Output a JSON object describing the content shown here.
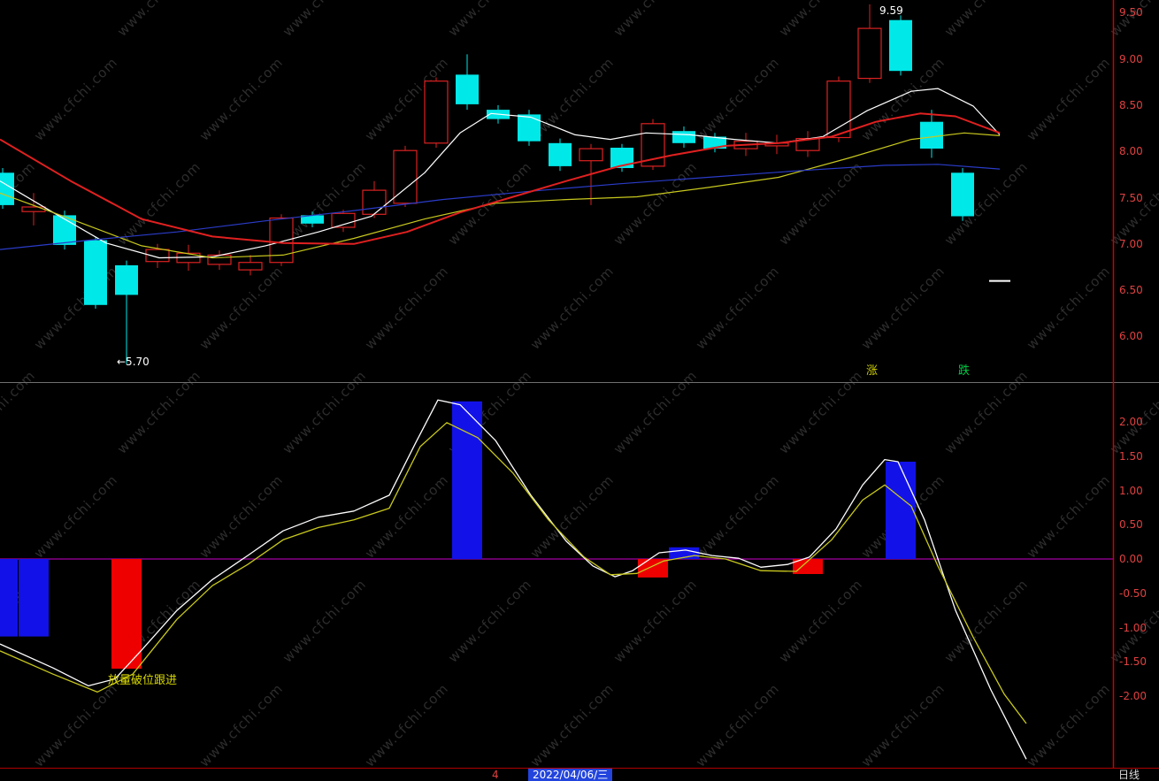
{
  "app": {
    "watermark_text": "www.cfchi.com"
  },
  "colors": {
    "background": "#000000",
    "axis_text": "#e04040",
    "axis_line": "#cc0000",
    "divider": "#707070",
    "candle_up": "#dd2222",
    "candle_down": "#00e8e8",
    "zero_line": "#cc00cc",
    "date_highlight": "#2244dd"
  },
  "chart_data": [
    {
      "type": "candlestick",
      "panel": "main",
      "ylabel": "price",
      "ylim": [
        5.5,
        9.7
      ],
      "y_ticks": [
        "9.50",
        "9.00",
        "8.50",
        "8.00",
        "7.50",
        "7.00",
        "6.50",
        "6.00"
      ],
      "up_color": "#dd2222",
      "down_color": "#00e8e8",
      "candles_format": "ohlc",
      "candles": [
        [
          7.77,
          7.82,
          7.38,
          7.42
        ],
        [
          7.35,
          7.55,
          7.2,
          7.4
        ],
        [
          7.31,
          7.36,
          6.94,
          6.99
        ],
        [
          7.04,
          7.08,
          6.3,
          6.34
        ],
        [
          6.77,
          6.82,
          5.7,
          6.45
        ],
        [
          6.81,
          7.0,
          6.74,
          6.94
        ],
        [
          6.8,
          6.99,
          6.71,
          6.9
        ],
        [
          6.78,
          6.93,
          6.72,
          6.88
        ],
        [
          6.72,
          6.88,
          6.66,
          6.8
        ],
        [
          6.8,
          7.32,
          6.76,
          7.28
        ],
        [
          7.31,
          7.35,
          7.18,
          7.22
        ],
        [
          7.18,
          7.37,
          7.13,
          7.33
        ],
        [
          7.32,
          7.68,
          7.28,
          7.58
        ],
        [
          7.44,
          8.06,
          7.4,
          8.01
        ],
        [
          8.09,
          8.8,
          8.04,
          8.76
        ],
        [
          8.83,
          9.05,
          8.45,
          8.51
        ],
        [
          8.45,
          8.5,
          8.3,
          8.35
        ],
        [
          8.4,
          8.45,
          8.06,
          8.11
        ],
        [
          8.09,
          8.14,
          7.79,
          7.84
        ],
        [
          7.9,
          8.08,
          7.42,
          8.03
        ],
        [
          8.04,
          8.08,
          7.78,
          7.82
        ],
        [
          7.84,
          8.35,
          7.8,
          8.3
        ],
        [
          8.22,
          8.27,
          8.04,
          8.09
        ],
        [
          8.16,
          8.2,
          7.99,
          8.03
        ],
        [
          8.03,
          8.2,
          7.95,
          8.11
        ],
        [
          8.06,
          8.18,
          7.97,
          8.09
        ],
        [
          8.01,
          8.22,
          7.94,
          8.14
        ],
        [
          8.15,
          8.81,
          8.1,
          8.76
        ],
        [
          8.79,
          9.59,
          8.74,
          9.33
        ],
        [
          9.42,
          9.47,
          8.82,
          8.87
        ],
        [
          8.32,
          8.45,
          7.93,
          8.03
        ],
        [
          7.77,
          7.82,
          7.25,
          7.3
        ]
      ],
      "ma_series": [
        {
          "name": "ma-fast-white",
          "color": "#ffffff",
          "width": 1.2,
          "points": [
            [
              0,
              7.68
            ],
            [
              60,
              7.34
            ],
            [
              120,
              7.01
            ],
            [
              180,
              6.85
            ],
            [
              240,
              6.86
            ],
            [
              300,
              6.98
            ],
            [
              360,
              7.13
            ],
            [
              420,
              7.3
            ],
            [
              480,
              7.77
            ],
            [
              520,
              8.2
            ],
            [
              555,
              8.41
            ],
            [
              600,
              8.37
            ],
            [
              650,
              8.18
            ],
            [
              690,
              8.13
            ],
            [
              730,
              8.2
            ],
            [
              780,
              8.18
            ],
            [
              830,
              8.13
            ],
            [
              880,
              8.09
            ],
            [
              930,
              8.16
            ],
            [
              980,
              8.44
            ],
            [
              1030,
              8.65
            ],
            [
              1060,
              8.68
            ],
            [
              1100,
              8.49
            ],
            [
              1130,
              8.18
            ]
          ]
        },
        {
          "name": "ma-mid-yellow",
          "color": "#c8c81e",
          "width": 1.2,
          "points": [
            [
              0,
              7.55
            ],
            [
              80,
              7.27
            ],
            [
              160,
              6.98
            ],
            [
              240,
              6.85
            ],
            [
              320,
              6.88
            ],
            [
              400,
              7.06
            ],
            [
              480,
              7.27
            ],
            [
              560,
              7.44
            ],
            [
              640,
              7.48
            ],
            [
              720,
              7.51
            ],
            [
              800,
              7.61
            ],
            [
              880,
              7.72
            ],
            [
              960,
              7.93
            ],
            [
              1030,
              8.13
            ],
            [
              1090,
              8.2
            ],
            [
              1130,
              8.17
            ]
          ]
        },
        {
          "name": "ma-slow-blue",
          "color": "#2a3cc8",
          "width": 1.2,
          "points": [
            [
              0,
              6.94
            ],
            [
              100,
              7.04
            ],
            [
              200,
              7.13
            ],
            [
              300,
              7.25
            ],
            [
              400,
              7.36
            ],
            [
              500,
              7.48
            ],
            [
              600,
              7.57
            ],
            [
              700,
              7.65
            ],
            [
              800,
              7.72
            ],
            [
              900,
              7.79
            ],
            [
              1000,
              7.85
            ],
            [
              1060,
              7.86
            ],
            [
              1130,
              7.81
            ]
          ]
        },
        {
          "name": "ma-long-red",
          "color": "#e02020",
          "width": 2,
          "points": [
            [
              0,
              8.13
            ],
            [
              80,
              7.68
            ],
            [
              160,
              7.27
            ],
            [
              240,
              7.08
            ],
            [
              320,
              7.01
            ],
            [
              400,
              7.0
            ],
            [
              460,
              7.13
            ],
            [
              520,
              7.34
            ],
            [
              580,
              7.51
            ],
            [
              640,
              7.68
            ],
            [
              700,
              7.84
            ],
            [
              760,
              7.96
            ],
            [
              820,
              8.06
            ],
            [
              880,
              8.09
            ],
            [
              940,
              8.16
            ],
            [
              990,
              8.32
            ],
            [
              1040,
              8.41
            ],
            [
              1080,
              8.38
            ],
            [
              1130,
              8.2
            ]
          ]
        }
      ],
      "dash_marker": {
        "x": 1118,
        "width": 24,
        "price": 6.6
      },
      "annotations": {
        "high": "9.59",
        "low": "←5.70",
        "up_label": "涨",
        "down_label": "跌"
      }
    },
    {
      "type": "bar",
      "panel": "sub-indicator",
      "ylim": [
        -3.0,
        2.5
      ],
      "y_ticks": [
        "2.00",
        "1.50",
        "1.00",
        "0.50",
        "0.00",
        "-0.50",
        "-1.00",
        "-1.50",
        "-2.00"
      ],
      "zero_line_color": "#cc00cc",
      "bar_colors": {
        "blue": "#1212e8",
        "red": "#ee0000"
      },
      "bars": [
        {
          "i": 0,
          "v": -1.13,
          "color": "blue"
        },
        {
          "i": 1,
          "v": -1.13,
          "color": "blue"
        },
        {
          "i": 4,
          "v": -1.6,
          "color": "red"
        },
        {
          "i": 15,
          "v": 2.3,
          "color": "blue"
        },
        {
          "i": 21,
          "v": -0.27,
          "color": "red"
        },
        {
          "i": 22,
          "v": 0.17,
          "color": "blue"
        },
        {
          "i": 26,
          "v": -0.22,
          "color": "red"
        },
        {
          "i": 29,
          "v": 1.42,
          "color": "blue"
        }
      ],
      "lines": [
        {
          "name": "indicator-fast-white",
          "color": "#ffffff",
          "width": 1.3,
          "points": [
            [
              0,
              -1.24
            ],
            [
              60,
              -1.59
            ],
            [
              100,
              -1.85
            ],
            [
              130,
              -1.75
            ],
            [
              160,
              -1.33
            ],
            [
              200,
              -0.75
            ],
            [
              240,
              -0.3
            ],
            [
              280,
              0.05
            ],
            [
              320,
              0.41
            ],
            [
              360,
              0.61
            ],
            [
              400,
              0.7
            ],
            [
              440,
              0.93
            ],
            [
              470,
              1.7
            ],
            [
              495,
              2.32
            ],
            [
              520,
              2.25
            ],
            [
              560,
              1.73
            ],
            [
              600,
              0.93
            ],
            [
              640,
              0.26
            ],
            [
              670,
              -0.1
            ],
            [
              695,
              -0.26
            ],
            [
              715,
              -0.17
            ],
            [
              745,
              0.09
            ],
            [
              775,
              0.13
            ],
            [
              805,
              0.05
            ],
            [
              835,
              0.01
            ],
            [
              860,
              -0.12
            ],
            [
              890,
              -0.08
            ],
            [
              915,
              0.03
            ],
            [
              945,
              0.44
            ],
            [
              975,
              1.08
            ],
            [
              1000,
              1.45
            ],
            [
              1015,
              1.42
            ],
            [
              1045,
              0.57
            ],
            [
              1080,
              -0.75
            ],
            [
              1120,
              -1.91
            ],
            [
              1160,
              -2.92
            ]
          ]
        },
        {
          "name": "indicator-slow-yellow",
          "color": "#c8c81e",
          "width": 1.3,
          "points": [
            [
              0,
              -1.34
            ],
            [
              60,
              -1.68
            ],
            [
              110,
              -1.94
            ],
            [
              150,
              -1.68
            ],
            [
              200,
              -0.88
            ],
            [
              240,
              -0.39
            ],
            [
              280,
              -0.08
            ],
            [
              320,
              0.28
            ],
            [
              360,
              0.46
            ],
            [
              400,
              0.57
            ],
            [
              440,
              0.74
            ],
            [
              475,
              1.64
            ],
            [
              505,
              1.99
            ],
            [
              540,
              1.77
            ],
            [
              580,
              1.25
            ],
            [
              620,
              0.57
            ],
            [
              660,
              0.03
            ],
            [
              690,
              -0.23
            ],
            [
              720,
              -0.21
            ],
            [
              750,
              -0.03
            ],
            [
              785,
              0.05
            ],
            [
              820,
              0.0
            ],
            [
              860,
              -0.17
            ],
            [
              900,
              -0.18
            ],
            [
              940,
              0.28
            ],
            [
              975,
              0.86
            ],
            [
              1000,
              1.08
            ],
            [
              1030,
              0.77
            ],
            [
              1060,
              -0.1
            ],
            [
              1100,
              -1.14
            ],
            [
              1135,
              -1.97
            ],
            [
              1160,
              -2.4
            ]
          ]
        }
      ],
      "signal_text": "放量破位跟进"
    }
  ],
  "status_bar": {
    "left_fragment": "4",
    "date": "2022/04/06/三",
    "period": "日线"
  }
}
